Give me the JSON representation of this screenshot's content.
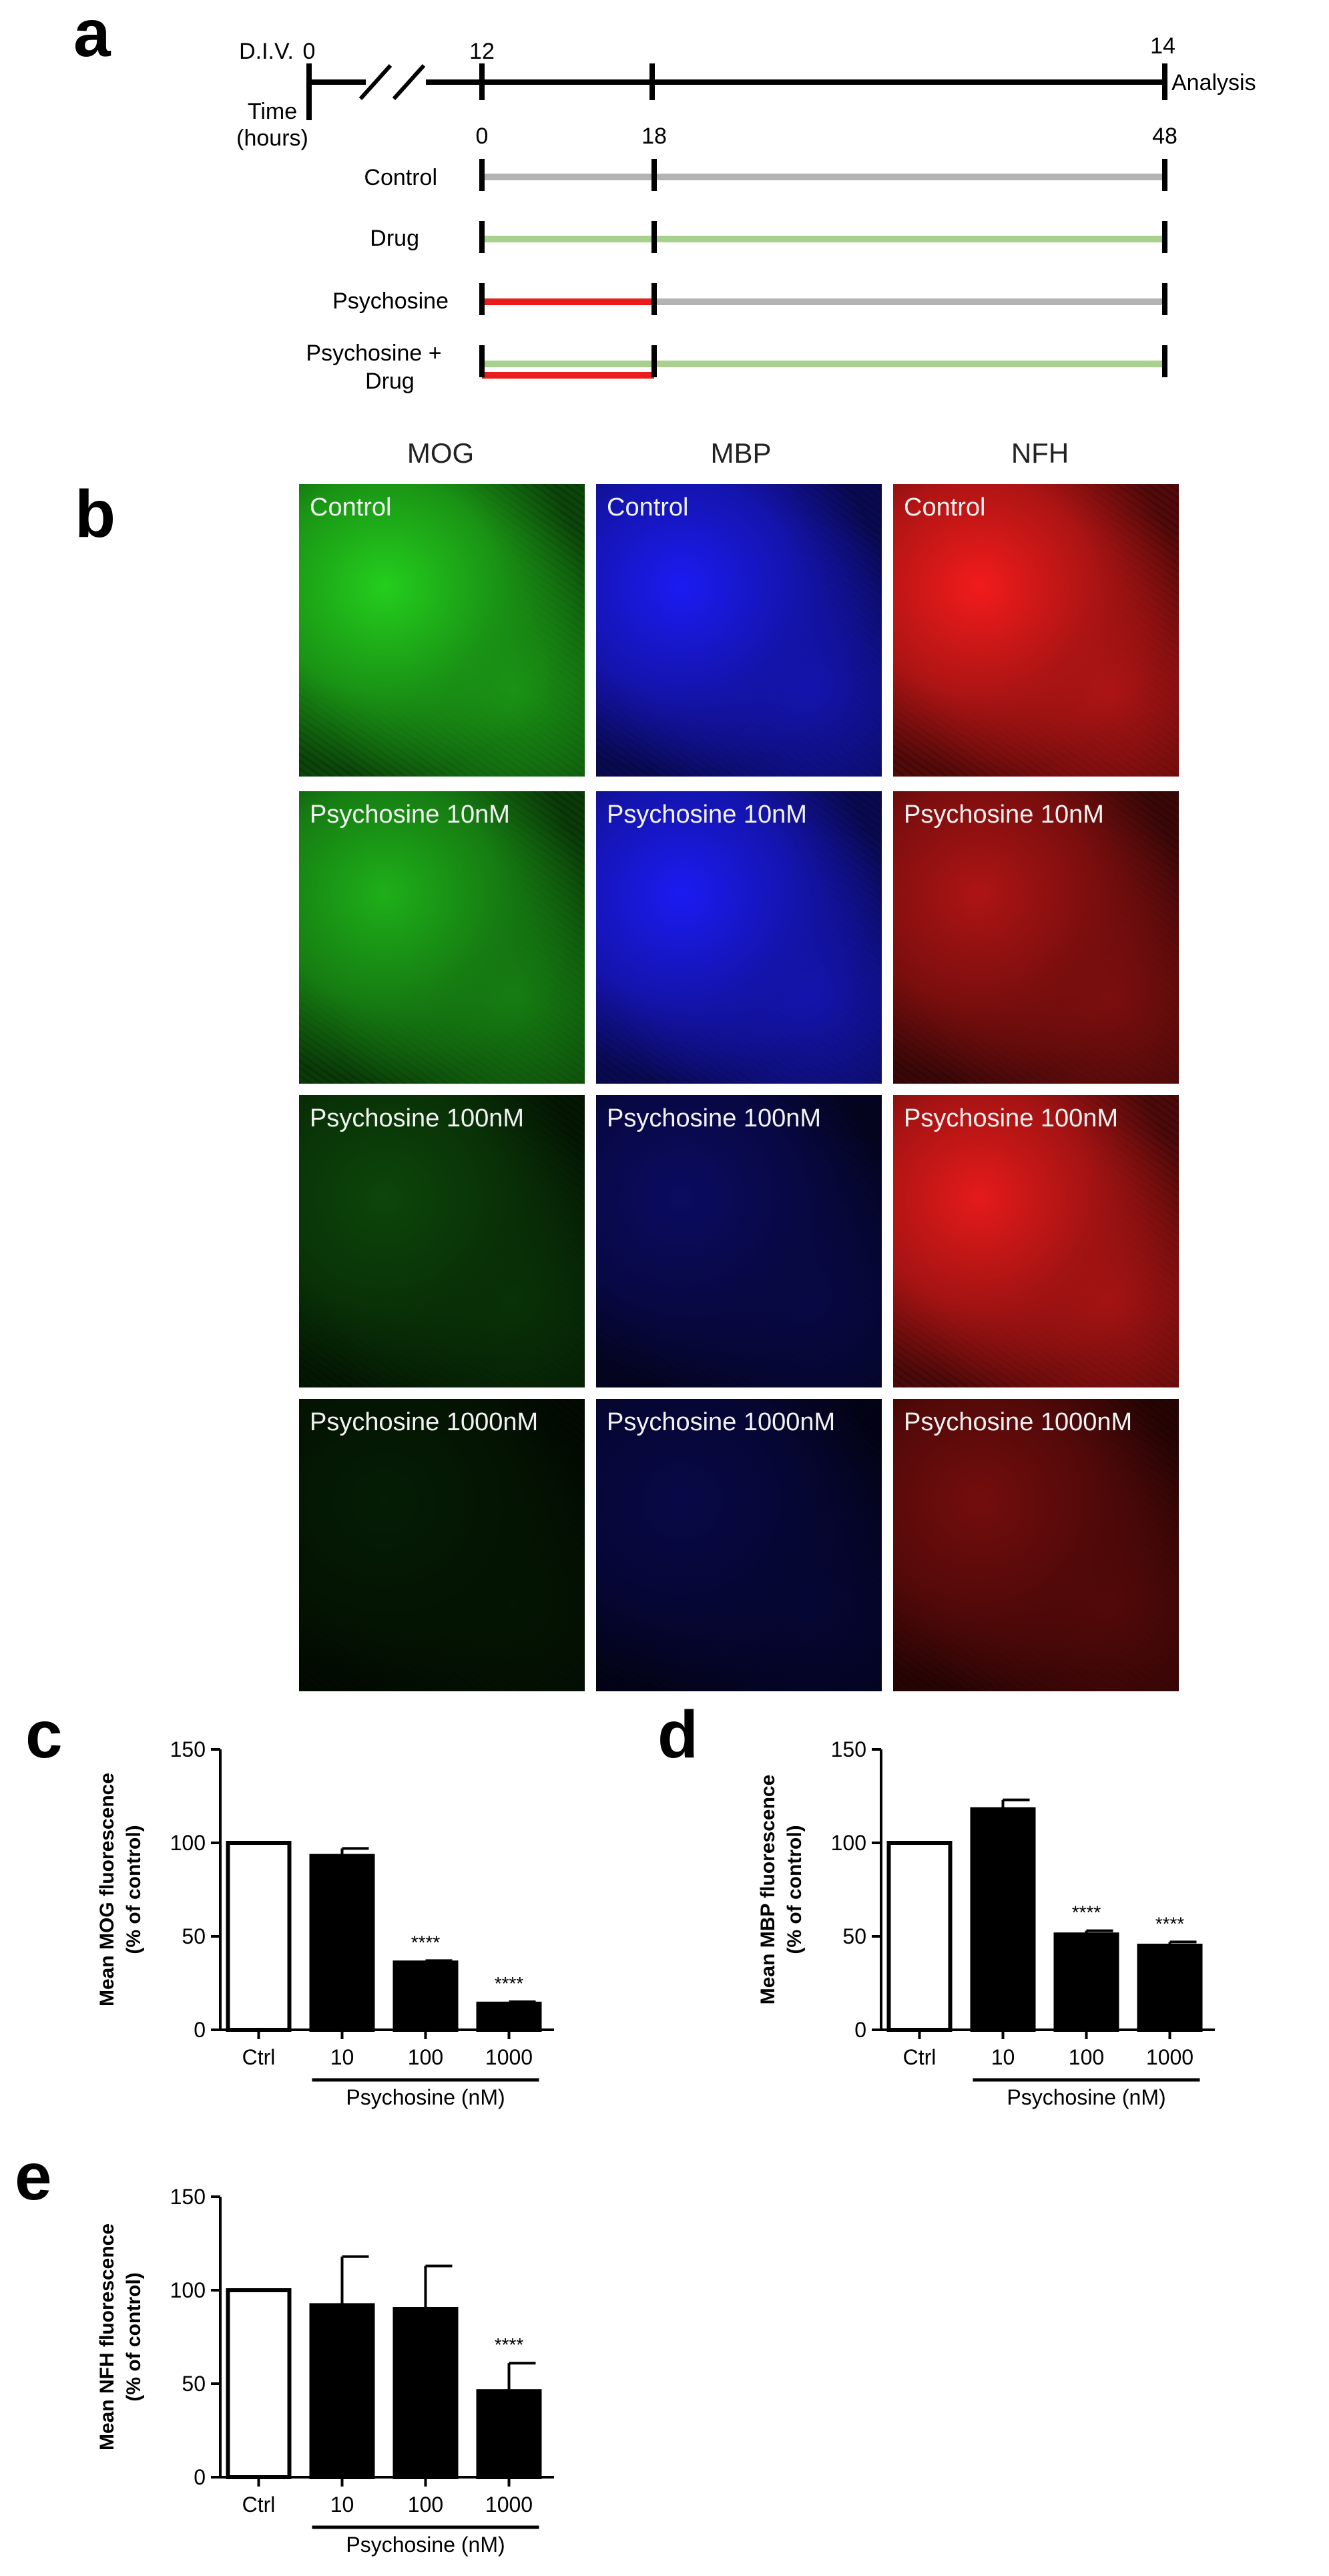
{
  "panel_letters": {
    "a": "a",
    "b": "b",
    "c": "c",
    "d": "d",
    "e": "e"
  },
  "timeline": {
    "div_label": "D.I.V.",
    "div_ticks": [
      "0",
      "12",
      "14"
    ],
    "time_label_line1": "Time",
    "time_label_line2": "(hours)",
    "hour_ticks": [
      "0",
      "18",
      "48"
    ],
    "analysis_label": "Analysis",
    "conditions": [
      {
        "label": "Control",
        "segments": [
          "grey",
          "grey"
        ]
      },
      {
        "label": "Drug",
        "segments": [
          "green",
          "green"
        ]
      },
      {
        "label": "Psychosine",
        "segments": [
          "red",
          "grey"
        ]
      },
      {
        "label_line1": "Psychosine +",
        "label_line2": "Drug",
        "segments": [
          "red+green",
          "green"
        ]
      }
    ],
    "colors": {
      "grey": "#b3b3b3",
      "green": "#a9d18e",
      "red": "#e81c1c"
    }
  },
  "micrographs": {
    "columns": [
      "MOG",
      "MBP",
      "NFH"
    ],
    "rows": [
      "Control",
      "Psychosine 10nM",
      "Psychosine 100nM",
      "Psychosine 1000nM"
    ],
    "channel_colors": [
      "#22c41c",
      "#1a1ae6",
      "#e61a1a"
    ],
    "intensity": [
      [
        1.0,
        1.0,
        1.0
      ],
      [
        0.85,
        1.0,
        0.72
      ],
      [
        0.34,
        0.4,
        0.95
      ],
      [
        0.14,
        0.3,
        0.48
      ]
    ]
  },
  "chart_data": [
    {
      "type": "bar",
      "panel": "c",
      "categories": [
        "Ctrl",
        "10",
        "100",
        "1000"
      ],
      "values": [
        100,
        93,
        36,
        14
      ],
      "errors": [
        0,
        4,
        1,
        1
      ],
      "significance": [
        "",
        "",
        "****",
        "****"
      ],
      "bar_fill": [
        "#ffffff",
        "#000000",
        "#000000",
        "#000000"
      ],
      "ylabel_line1": "Mean MOG fluorescence",
      "ylabel_line2": "(% of control)",
      "ylim": [
        0,
        150
      ],
      "yticks": [
        "0",
        "50",
        "100",
        "150"
      ],
      "group_label": "Psychosine (nM)"
    },
    {
      "type": "bar",
      "panel": "d",
      "categories": [
        "Ctrl",
        "10",
        "100",
        "1000"
      ],
      "values": [
        100,
        118,
        51,
        45
      ],
      "errors": [
        0,
        5,
        2,
        2
      ],
      "significance": [
        "",
        "",
        "****",
        "****"
      ],
      "bar_fill": [
        "#ffffff",
        "#000000",
        "#000000",
        "#000000"
      ],
      "ylabel_line1": "Mean MBP fluorescence",
      "ylabel_line2": "(% of control)",
      "ylim": [
        0,
        150
      ],
      "yticks": [
        "0",
        "50",
        "100",
        "150"
      ],
      "group_label": "Psychosine (nM)"
    },
    {
      "type": "bar",
      "panel": "e",
      "categories": [
        "Ctrl",
        "10",
        "100",
        "1000"
      ],
      "values": [
        100,
        92,
        90,
        46
      ],
      "errors": [
        0,
        26,
        23,
        15
      ],
      "significance": [
        "",
        "",
        "",
        "****"
      ],
      "bar_fill": [
        "#ffffff",
        "#000000",
        "#000000",
        "#000000"
      ],
      "ylabel_line1": "Mean NFH fluorescence",
      "ylabel_line2": "(% of control)",
      "ylim": [
        0,
        150
      ],
      "yticks": [
        "0",
        "50",
        "100",
        "150"
      ],
      "group_label": "Psychosine (nM)"
    }
  ]
}
